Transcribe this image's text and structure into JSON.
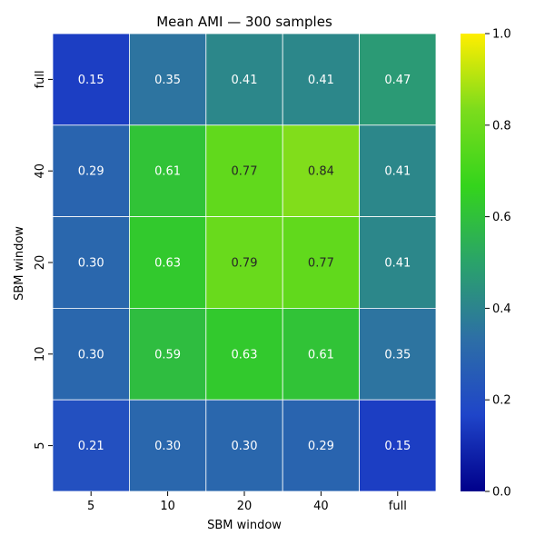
{
  "chart_data": {
    "type": "heatmap",
    "title": "Mean AMI — 300 samples",
    "xlabel": "SBM window",
    "ylabel": "SBM window",
    "x_categories": [
      "5",
      "10",
      "20",
      "40",
      "full"
    ],
    "y_categories": [
      "full",
      "40",
      "20",
      "10",
      "5"
    ],
    "values": [
      [
        0.15,
        0.35,
        0.41,
        0.41,
        0.47
      ],
      [
        0.29,
        0.61,
        0.77,
        0.84,
        0.41
      ],
      [
        0.3,
        0.63,
        0.79,
        0.77,
        0.41
      ],
      [
        0.3,
        0.59,
        0.63,
        0.61,
        0.35
      ],
      [
        0.21,
        0.3,
        0.3,
        0.29,
        0.15
      ]
    ],
    "value_labels": [
      [
        "0.15",
        "0.35",
        "0.41",
        "0.41",
        "0.47"
      ],
      [
        "0.29",
        "0.61",
        "0.77",
        "0.84",
        "0.41"
      ],
      [
        "0.30",
        "0.63",
        "0.79",
        "0.77",
        "0.41"
      ],
      [
        "0.30",
        "0.59",
        "0.63",
        "0.61",
        "0.35"
      ],
      [
        "0.21",
        "0.30",
        "0.30",
        "0.29",
        "0.15"
      ]
    ],
    "colorbar": {
      "range": [
        0.0,
        1.0
      ],
      "ticks": [
        0.0,
        0.2,
        0.4,
        0.6,
        0.8,
        1.0
      ],
      "tick_labels": [
        "0.0",
        "0.2",
        "0.4",
        "0.6",
        "0.8",
        "1.0"
      ],
      "colormap": [
        "#00008b",
        "#1f45c9",
        "#2d6fa6",
        "#2aa36a",
        "#34d41c",
        "#7cdc1c",
        "#ffee00"
      ]
    },
    "grid": false,
    "legend": "colorbar-right"
  }
}
